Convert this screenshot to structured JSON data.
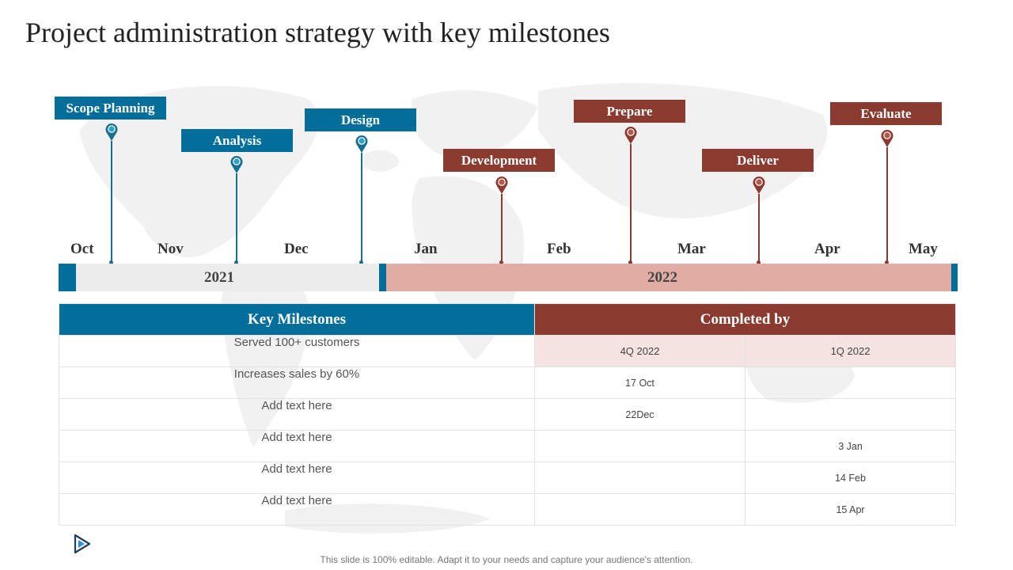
{
  "title": "Project administration strategy with key milestones",
  "colors": {
    "blue": "#026e99",
    "brown": "#8a3a2e",
    "bar_grey": "#ececec",
    "bar_pink": "#e1aca4",
    "subheader_bg": "#f5e3e1"
  },
  "milestone_tags": [
    {
      "label": "Scope Planning",
      "color": "blue"
    },
    {
      "label": "Analysis",
      "color": "blue"
    },
    {
      "label": "Design",
      "color": "blue"
    },
    {
      "label": "Development",
      "color": "brown"
    },
    {
      "label": "Prepare",
      "color": "brown"
    },
    {
      "label": "Deliver",
      "color": "brown"
    },
    {
      "label": "Evaluate",
      "color": "brown"
    }
  ],
  "months": [
    "Oct",
    "Nov",
    "Dec",
    "Jan",
    "Feb",
    "Mar",
    "Apr",
    "May"
  ],
  "years": [
    "2021",
    "2022"
  ],
  "table": {
    "col_milestones": "Key Milestones",
    "col_completed": "Completed by",
    "sub_headers": [
      "4Q 2022",
      "1Q 2022"
    ],
    "rows": [
      {
        "milestone": "Served 100+ customers",
        "q4": "",
        "q1": ""
      },
      {
        "milestone": "Increases  sales by 60%",
        "q4": "17 Oct",
        "q1": ""
      },
      {
        "milestone": "Add text here",
        "q4": "22Dec",
        "q1": ""
      },
      {
        "milestone": "Add text here",
        "q4": "",
        "q1": "3 Jan"
      },
      {
        "milestone": "Add text here",
        "q4": "",
        "q1": "14 Feb"
      },
      {
        "milestone": "Add text here",
        "q4": "",
        "q1": "15 Apr"
      }
    ]
  },
  "play_icon": "play-icon",
  "footer": "This slide is 100% editable. Adapt it to your needs and capture your audience's attention."
}
